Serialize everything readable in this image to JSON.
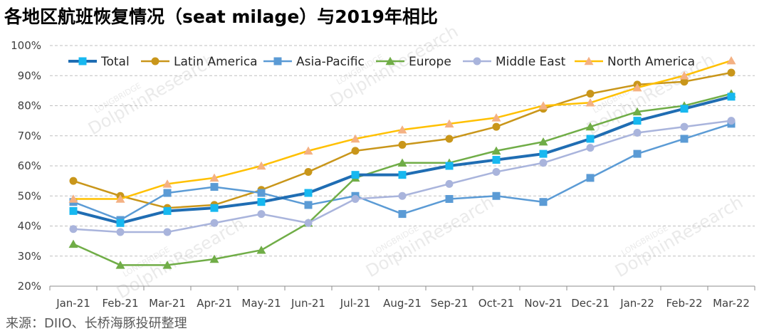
{
  "chart_data": {
    "type": "line",
    "title": "各地区航班恢复情况（seat milage）与2019年相比",
    "source": "来源：DIIO、长桥海豚投研整理",
    "watermark": "DolphinResearch",
    "watermark_sub": "LONGBRIDGE",
    "categories": [
      "Jan-21",
      "Feb-21",
      "Mar-21",
      "Apr-21",
      "May-21",
      "Jun-21",
      "Jul-21",
      "Aug-21",
      "Sep-21",
      "Oct-21",
      "Nov-21",
      "Dec-21",
      "Jan-22",
      "Feb-22",
      "Mar-22"
    ],
    "y_ticks": [
      "20%",
      "30%",
      "40%",
      "50%",
      "60%",
      "70%",
      "80%",
      "90%",
      "100%"
    ],
    "ylim": [
      20,
      100
    ],
    "y_step": 10,
    "grid": "horizontal-dashed",
    "legend_position": "top",
    "series": [
      {
        "name": "Total",
        "color": "#1f6db3",
        "marker": "square",
        "marker_color": "#17b8f0",
        "line_width": 4,
        "values": [
          45,
          41,
          45,
          46,
          48,
          51,
          57,
          57,
          60,
          62,
          64,
          69,
          75,
          79,
          83
        ]
      },
      {
        "name": "Latin America",
        "color": "#c9961a",
        "marker": "circle",
        "marker_color": "#c9961a",
        "line_width": 2.5,
        "values": [
          55,
          50,
          46,
          47,
          52,
          58,
          65,
          67,
          69,
          73,
          79,
          84,
          87,
          88,
          91
        ]
      },
      {
        "name": "Asia-Pacific",
        "color": "#5b9bd5",
        "marker": "square",
        "marker_color": "#5b9bd5",
        "line_width": 2.5,
        "values": [
          48,
          42,
          51,
          53,
          51,
          47,
          50,
          44,
          49,
          50,
          48,
          56,
          64,
          69,
          74
        ]
      },
      {
        "name": "Europe",
        "color": "#70ad47",
        "marker": "triangle",
        "marker_color": "#70ad47",
        "line_width": 2.5,
        "values": [
          34,
          27,
          27,
          29,
          32,
          41,
          56,
          61,
          61,
          65,
          68,
          73,
          78,
          80,
          84
        ]
      },
      {
        "name": "Middle East",
        "color": "#a9b4dc",
        "marker": "circle",
        "marker_color": "#a9b4dc",
        "line_width": 2.5,
        "values": [
          39,
          38,
          38,
          41,
          44,
          41,
          49,
          50,
          54,
          58,
          61,
          66,
          71,
          73,
          75
        ]
      },
      {
        "name": "North America",
        "color": "#ffc000",
        "marker": "triangle",
        "marker_color": "#f4b183",
        "line_width": 2.5,
        "values": [
          49,
          49,
          54,
          56,
          60,
          65,
          69,
          72,
          74,
          76,
          80,
          81,
          86,
          90,
          95
        ]
      }
    ]
  }
}
